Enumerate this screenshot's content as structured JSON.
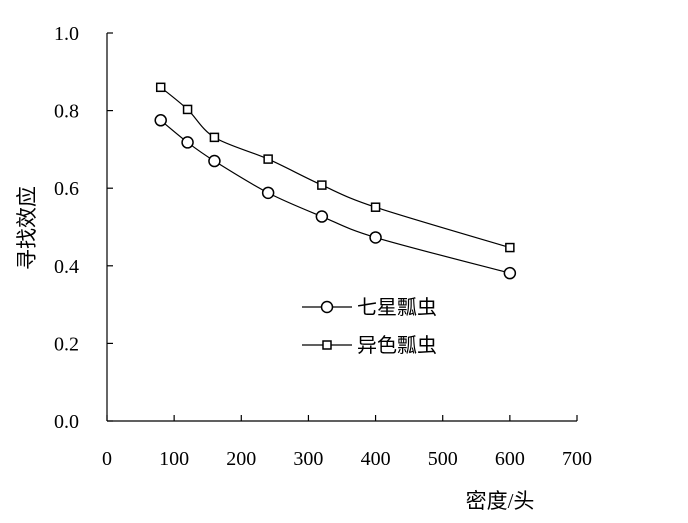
{
  "chart_data": {
    "type": "line",
    "xlabel": "密度/头",
    "ylabel": "寻找效应",
    "xlim": [
      0,
      700
    ],
    "ylim": [
      0.0,
      1.0
    ],
    "x_ticks": [
      "0",
      "100",
      "200",
      "300",
      "400",
      "500",
      "600",
      "700"
    ],
    "y_ticks": [
      "0.0",
      "0.2",
      "0.4",
      "0.6",
      "0.8",
      "1.0"
    ],
    "grid": false,
    "legend_position": "center-left",
    "series": [
      {
        "name": "七星瓢虫",
        "marker": "circle",
        "x": [
          80,
          120,
          160,
          240,
          320,
          400,
          600
        ],
        "y": [
          0.775,
          0.718,
          0.67,
          0.588,
          0.527,
          0.473,
          0.381
        ]
      },
      {
        "name": "异色瓢虫",
        "marker": "square",
        "x": [
          80,
          120,
          160,
          240,
          320,
          400,
          600
        ],
        "y": [
          0.86,
          0.803,
          0.731,
          0.675,
          0.608,
          0.551,
          0.447
        ]
      }
    ]
  }
}
